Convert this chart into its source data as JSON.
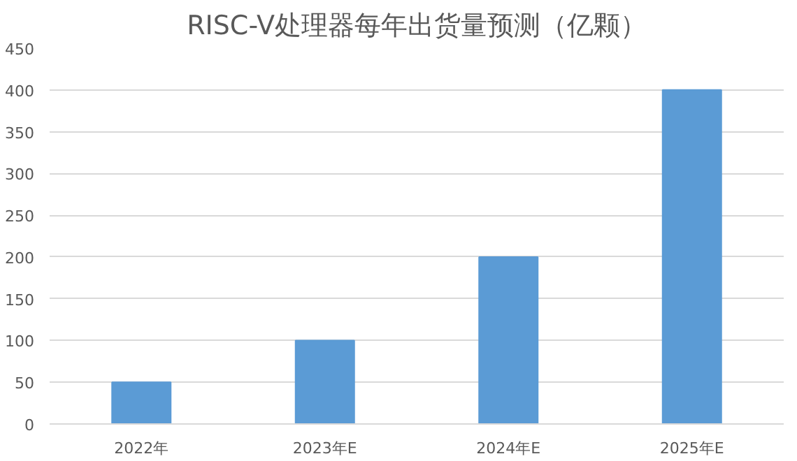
{
  "chart_data": {
    "type": "bar",
    "title": "RISC-V处理器每年出货量预测（亿颗）",
    "categories": [
      "2022年",
      "2023年E",
      "2024年E",
      "2025年E"
    ],
    "values": [
      50,
      100,
      200,
      400
    ],
    "color": "#5b9bd5",
    "ylim": [
      0,
      450
    ],
    "yticks": [
      0,
      50,
      100,
      150,
      200,
      250,
      300,
      350,
      400,
      450
    ],
    "grid": "y"
  }
}
